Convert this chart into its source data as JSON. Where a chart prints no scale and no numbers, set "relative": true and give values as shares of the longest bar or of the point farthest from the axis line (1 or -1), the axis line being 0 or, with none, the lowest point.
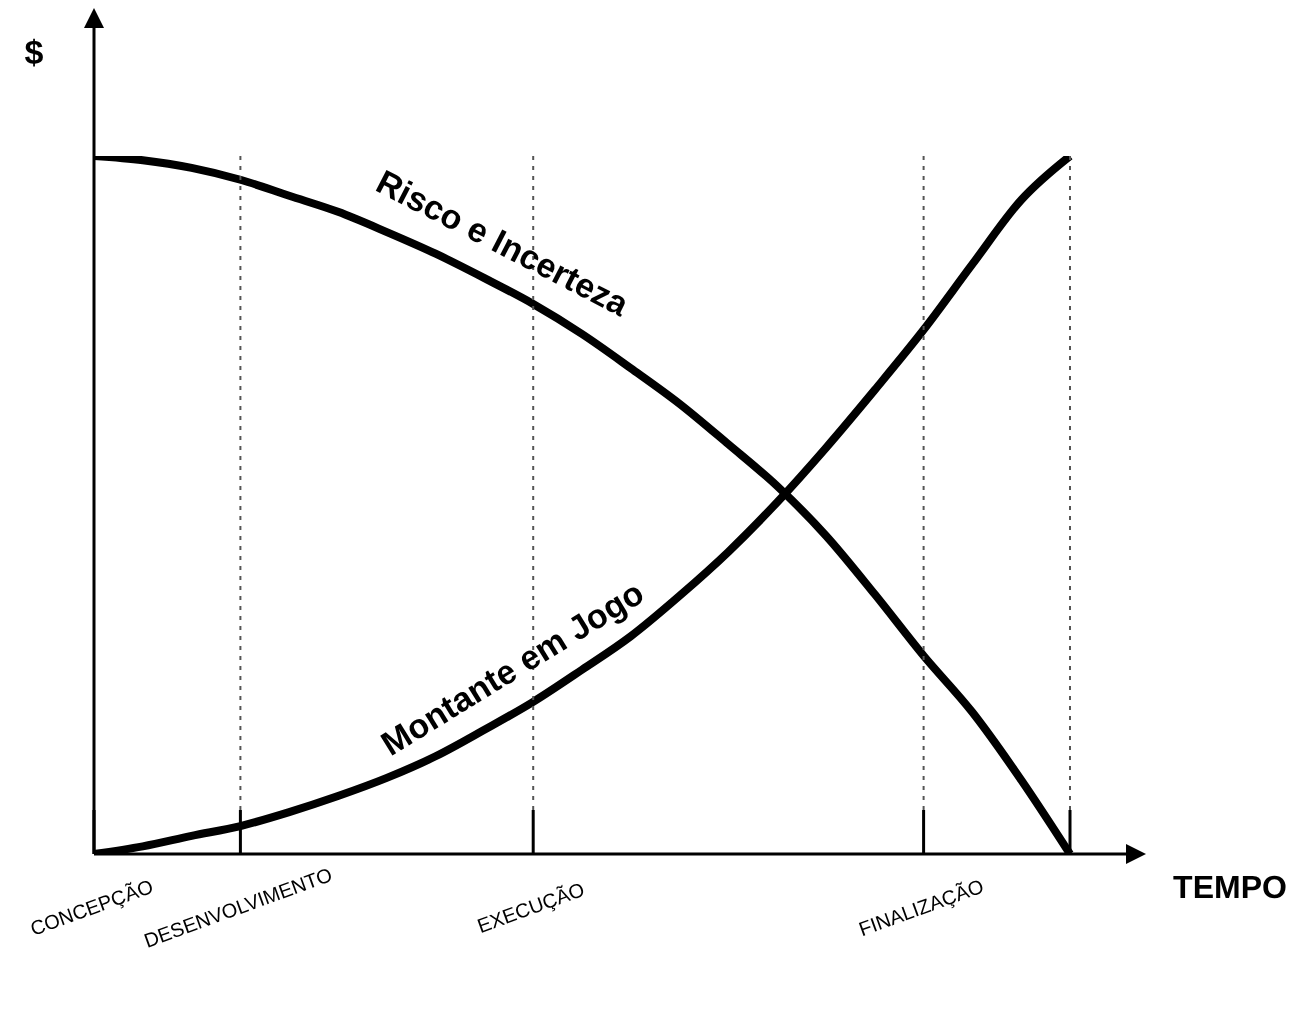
{
  "chart_data": {
    "type": "line",
    "relative": true,
    "xlabel": "TEMPO",
    "ylabel": "$",
    "categories": [
      "CONCEPÇÃO",
      null,
      null,
      "DESENVOLVIMENTO",
      null,
      null,
      null,
      null,
      null,
      "EXECUÇÃO",
      null,
      null,
      null,
      null,
      null,
      null,
      null,
      "FINALIZAÇÃO",
      null,
      null,
      null
    ],
    "series": [
      {
        "name": "Risco e Incerteza",
        "color": "#000000",
        "values": [
          1,
          0.994,
          0.983,
          0.966,
          0.943,
          0.92,
          0.891,
          0.86,
          0.825,
          0.788,
          0.745,
          0.696,
          0.645,
          0.587,
          0.527,
          0.456,
          0.372,
          0.284,
          0.203,
          0.106,
          0
        ]
      },
      {
        "name": "Montante em Jogo",
        "color": "#000000",
        "values": [
          0,
          0.011,
          0.026,
          0.04,
          0.06,
          0.083,
          0.109,
          0.14,
          0.178,
          0.218,
          0.264,
          0.312,
          0.37,
          0.433,
          0.504,
          0.582,
          0.665,
          0.751,
          0.845,
          0.937,
          1
        ]
      }
    ],
    "legend": false,
    "grid": "x",
    "marker": "none",
    "line_style": "solid"
  }
}
